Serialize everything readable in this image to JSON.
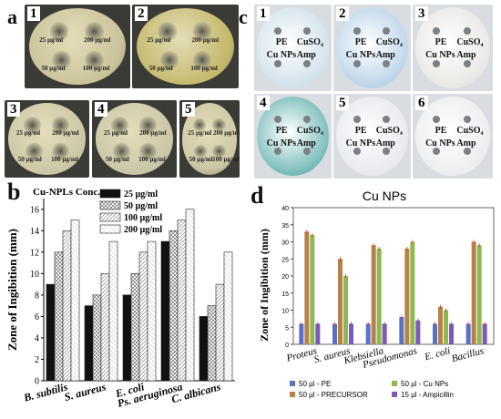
{
  "panels": {
    "a": {
      "letter": "a",
      "plates": [
        {
          "num": "1",
          "labels": [
            "25 µg/ml",
            "200 µg/ml",
            "50 µg/ml",
            "100 µg/ml"
          ]
        },
        {
          "num": "2",
          "labels": [
            "25 µg/ml",
            "200 µg/ml",
            "50 µg/ml",
            "100 µg/ml"
          ]
        },
        {
          "num": "3",
          "labels": [
            "25 µg/ml",
            "200 µg/ml",
            "50 µg/ml",
            "100 µg/ml"
          ]
        },
        {
          "num": "4",
          "labels": [
            "25 µg/ml",
            "200 µg/ml",
            "50 µg/ml",
            "100 µg/ml"
          ]
        },
        {
          "num": "5",
          "labels": [
            "25 µg/ml",
            "200 µg/ml",
            "50 µg/ml",
            "100 µg/ml"
          ]
        }
      ]
    },
    "c": {
      "letter": "c",
      "plates": [
        {
          "num": "1",
          "labels": [
            "PE",
            "CuSO₄",
            "Cu NPs",
            "Amp"
          ],
          "agar": "#cfe0ea"
        },
        {
          "num": "2",
          "labels": [
            "PE",
            "CuSO₄",
            "Cu NPs",
            "Amp"
          ],
          "agar": "#b9d2e8"
        },
        {
          "num": "3",
          "labels": [
            "PE",
            "CuSO₄",
            "Cu NPs",
            "Amp"
          ],
          "agar": "#e8e6e2"
        },
        {
          "num": "4",
          "labels": [
            "PE",
            "CuSO₄",
            "Cu NPs",
            "Amp"
          ],
          "agar": "#6fb7b4"
        },
        {
          "num": "5",
          "labels": [
            "PE",
            "CuSO₄",
            "Cu NPs",
            "Amp"
          ],
          "agar": "#e6e7ee"
        },
        {
          "num": "6",
          "labels": [
            "PE",
            "CuSO₄",
            "Cu NPs",
            "Amp"
          ],
          "agar": "#ecebef"
        }
      ]
    }
  },
  "chart_data": [
    {
      "panel": "b",
      "type": "bar",
      "title": "",
      "ylabel": "Zone of Ingibition (mm)",
      "xlabel": "",
      "ylim": [
        0,
        17
      ],
      "yticks": [
        0,
        2,
        4,
        6,
        8,
        10,
        12,
        14,
        16
      ],
      "legend_title": "Cu-NPLs Conc.",
      "legend_position": "top-right",
      "categories": [
        "B. subtilis",
        "S. aureus",
        "E. coli",
        "Ps. aeruginosa",
        "C. albicans"
      ],
      "series": [
        {
          "name": "25 µg/ml",
          "values": [
            9,
            7,
            8,
            13,
            6
          ],
          "fill": "#111111"
        },
        {
          "name": "50 µg/ml",
          "values": [
            12,
            8,
            10,
            14,
            7
          ],
          "fill": "#e8e8e8"
        },
        {
          "name": "100 µg/ml",
          "values": [
            14,
            10,
            12,
            15,
            9
          ],
          "fill": "#f2f2f2"
        },
        {
          "name": "200 µg/ml",
          "values": [
            15,
            13,
            13,
            16,
            12
          ],
          "fill": "#fafafa"
        }
      ]
    },
    {
      "panel": "d",
      "type": "bar",
      "title": "Cu NPs",
      "ylabel": "Zone of Ingibition (mm)",
      "xlabel": "",
      "ylim": [
        0,
        40
      ],
      "yticks": [
        0,
        5,
        10,
        15,
        20,
        25,
        30,
        35,
        40
      ],
      "legend_position": "bottom",
      "categories": [
        "Proteus",
        "S. aureus",
        "Klebsiella",
        "Pseudomonas",
        "E. coli",
        "Bacillus"
      ],
      "series": [
        {
          "name": "50 µl - PE",
          "values": [
            6,
            6,
            6,
            8,
            6,
            6
          ],
          "color": "#5b72c4"
        },
        {
          "name": "50 µl - PRECURSOR",
          "values": [
            33,
            25,
            29,
            28,
            11,
            30
          ],
          "color": "#b5824c"
        },
        {
          "name": "50 µl - Cu NPs",
          "values": [
            32,
            20,
            28,
            30,
            10,
            29
          ],
          "color": "#8fb84e"
        },
        {
          "name": "15 µl - Ampicillin",
          "values": [
            6,
            6,
            6,
            7,
            6,
            6
          ],
          "color": "#7a5ab8"
        }
      ]
    }
  ],
  "panel_b_letter": "b",
  "panel_d_letter": "d"
}
